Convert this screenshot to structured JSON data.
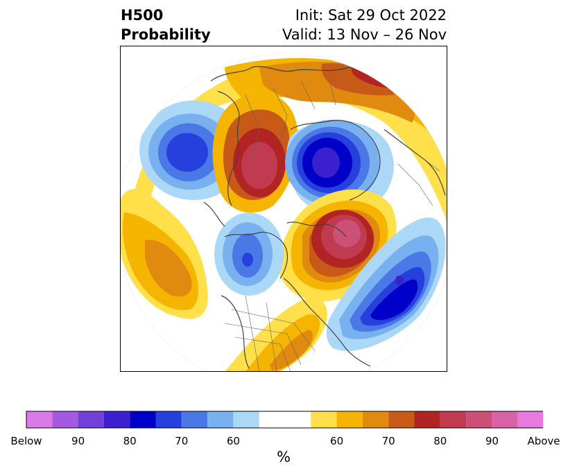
{
  "header": {
    "variable": "H500",
    "product": "Probability",
    "init": "Init: Sat 29 Oct 2022",
    "valid": "Valid: 13 Nov – 26 Nov"
  },
  "colorbar": {
    "unit": "%",
    "colors": [
      "#d97ae8",
      "#a35ae0",
      "#7040d8",
      "#3a20cf",
      "#0000c8",
      "#2540dc",
      "#4a78e6",
      "#78b0f0",
      "#acd8f8",
      "#ffffff",
      "#ffe04a",
      "#f4b400",
      "#e08a10",
      "#c85a18",
      "#b22424",
      "#c03a50",
      "#cc4f78",
      "#da62a8",
      "#e67ae0"
    ],
    "labels": [
      "Below",
      "90",
      "80",
      "70",
      "60",
      "60",
      "70",
      "80",
      "90",
      "Above"
    ]
  },
  "map": {
    "projection": "north-polar-stereographic",
    "above_colors": {
      "p50": "#ffe04a",
      "p60": "#f4b400",
      "p70": "#e08a10",
      "p75": "#c85a18",
      "p80": "#b22424",
      "p85": "#c03a50",
      "p90": "#cc4f78",
      "p95": "#da62a8"
    },
    "below_colors": {
      "p50": "#acd8f8",
      "p60": "#78b0f0",
      "p70": "#4a78e6",
      "p75": "#2540dc",
      "p80": "#0000c8",
      "p85": "#3a20cf",
      "p90": "#7040d8"
    }
  }
}
